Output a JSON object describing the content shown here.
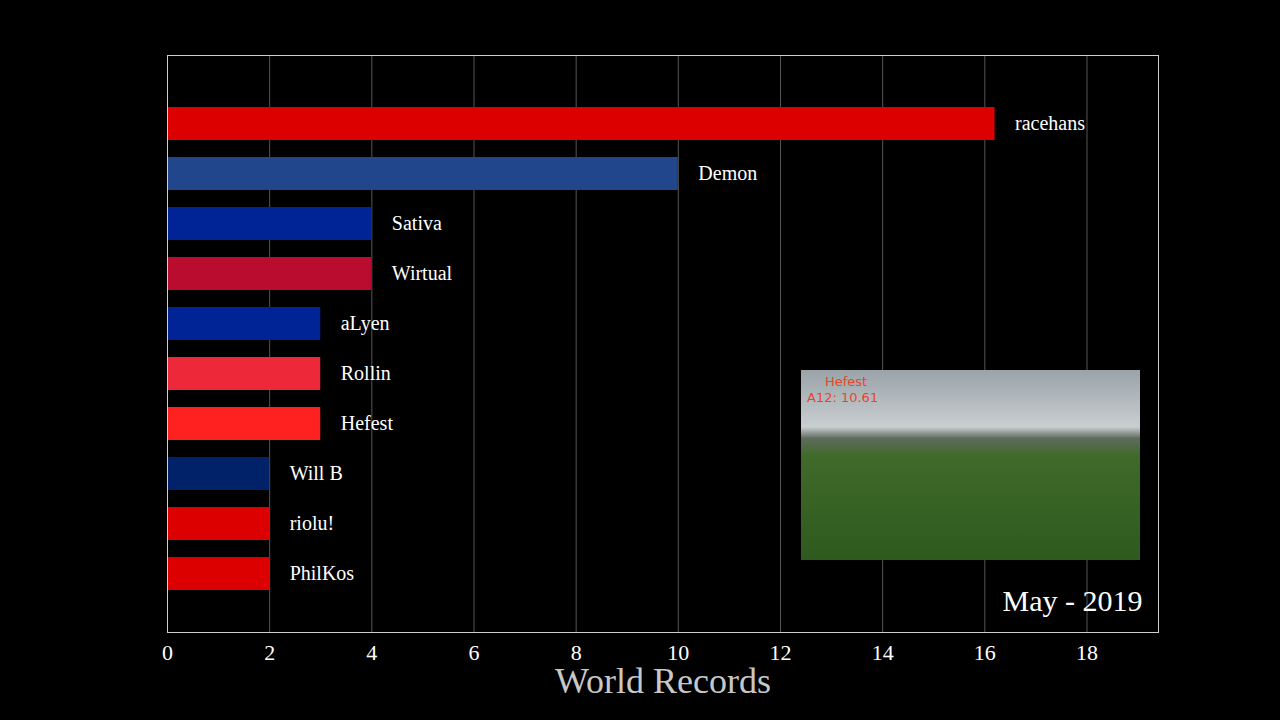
{
  "chart_data": {
    "type": "bar",
    "orientation": "horizontal",
    "xlabel": "World Records",
    "categories": [
      "racehans",
      "Demon",
      "Sativa",
      "Wirtual",
      "aLyen",
      "Rollin",
      "Hefest",
      "Will B",
      "riolu!",
      "PhilKos"
    ],
    "values": [
      16.2,
      10,
      4,
      4,
      3,
      3,
      3,
      2,
      2,
      2
    ],
    "colors": [
      "#dd0000",
      "#21468b",
      "#002395",
      "#ba0c2f",
      "#002395",
      "#ed2939",
      "#ff2020",
      "#012169",
      "#dd0000",
      "#dd0000"
    ],
    "xlim": [
      0,
      19.4
    ],
    "xticks": [
      0,
      2,
      4,
      6,
      8,
      10,
      12,
      14,
      16,
      18
    ],
    "grid": true,
    "tick_labels": "x",
    "annotations": [
      "May - 2019",
      "Hefest",
      "A12: 10.61"
    ]
  }
}
